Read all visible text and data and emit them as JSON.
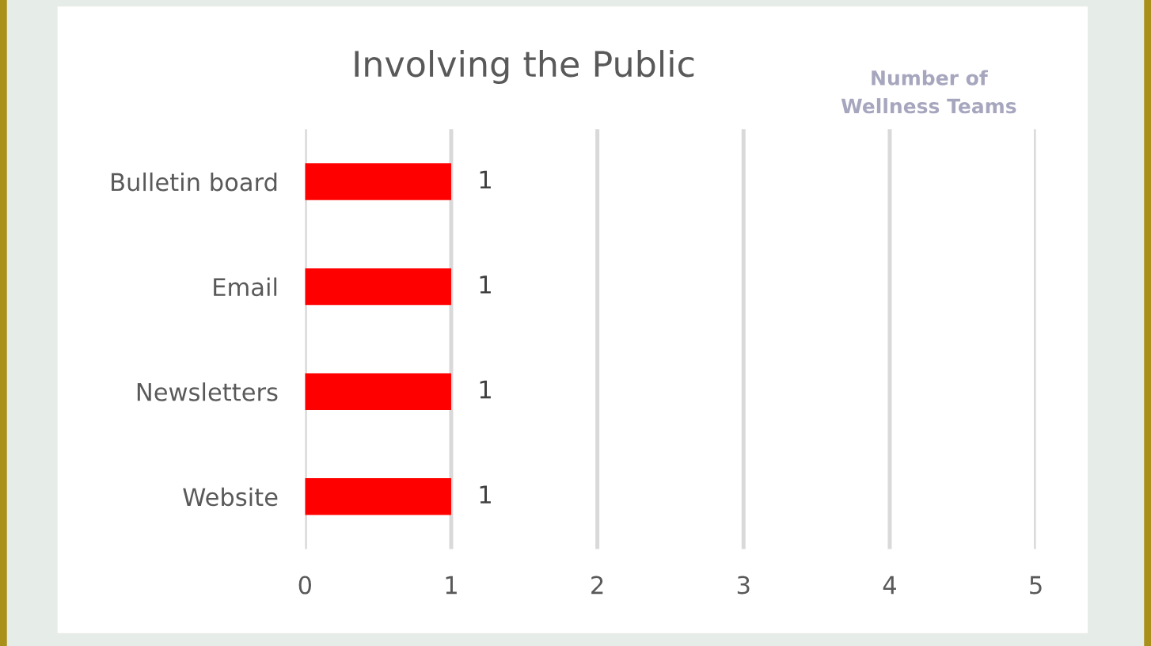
{
  "chart_data": {
    "type": "bar",
    "orientation": "horizontal",
    "title": "Involving the Public",
    "xlabel": "Number of\nWellness Teams",
    "categories": [
      "Bulletin board",
      "Email",
      "Newsletters",
      "Website"
    ],
    "values": [
      1,
      1,
      1,
      1
    ],
    "color": "#ff0000",
    "xlim": [
      0,
      5
    ],
    "xticks": [
      0,
      1,
      2,
      3,
      4,
      5
    ],
    "grid": "x",
    "data_labels": true
  }
}
